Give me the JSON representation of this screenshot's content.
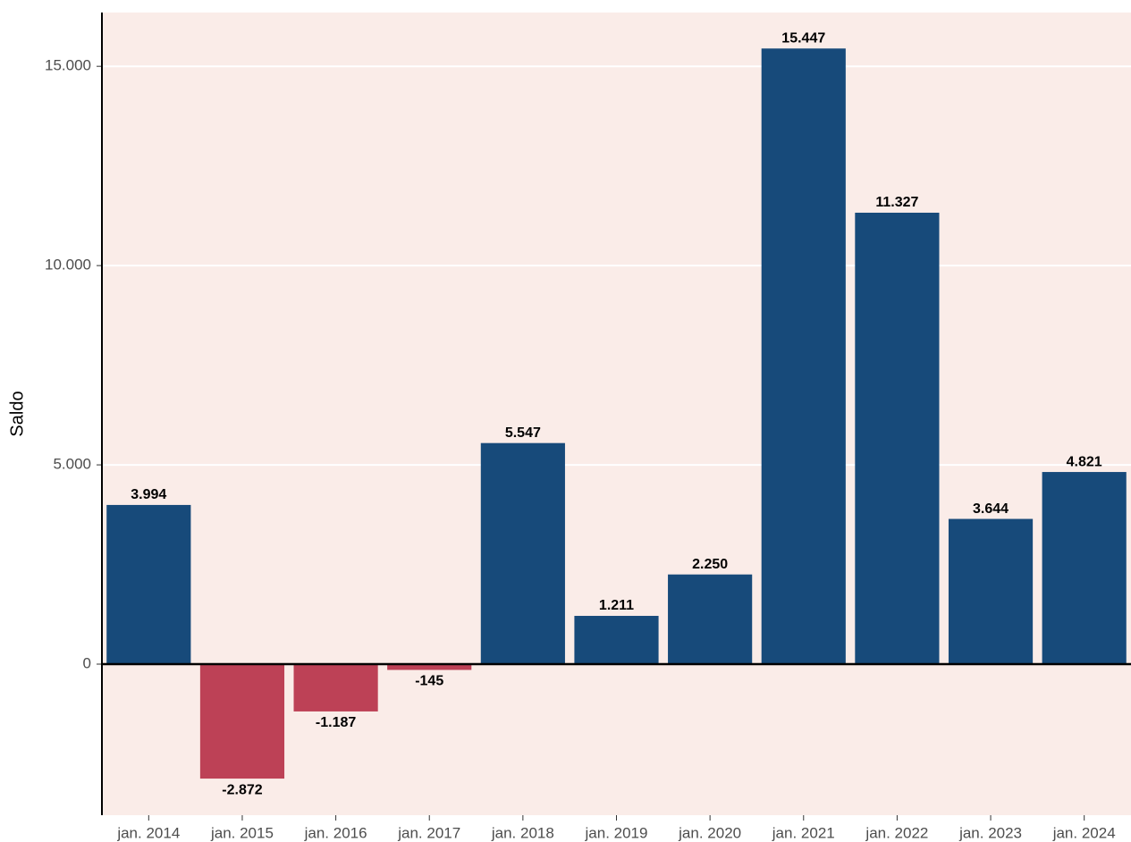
{
  "chart_data": {
    "type": "bar",
    "y_label": "Saldo",
    "categories": [
      "jan. 2014",
      "jan. 2015",
      "jan. 2016",
      "jan. 2017",
      "jan. 2018",
      "jan. 2019",
      "jan. 2020",
      "jan. 2021",
      "jan. 2022",
      "jan. 2023",
      "jan. 2024"
    ],
    "values": [
      3994,
      -2872,
      -1187,
      -145,
      5547,
      1211,
      2250,
      15447,
      11327,
      3644,
      4821
    ],
    "value_labels": [
      "3.994",
      "-2.872",
      "-1.187",
      "-145",
      "5.547",
      "1.211",
      "2.250",
      "15.447",
      "11.327",
      "3.644",
      "4.821"
    ],
    "positive_color": "#174a7a",
    "negative_color": "#bd4156",
    "ylim": [
      -3790,
      16350
    ],
    "yticks": [
      0,
      {
        "value": 5000,
        "label": "5.000"
      },
      {
        "value": 10000,
        "label": "10.000"
      },
      {
        "value": 15000,
        "label": "15.000"
      }
    ],
    "grid": true,
    "background": "#faece8"
  }
}
